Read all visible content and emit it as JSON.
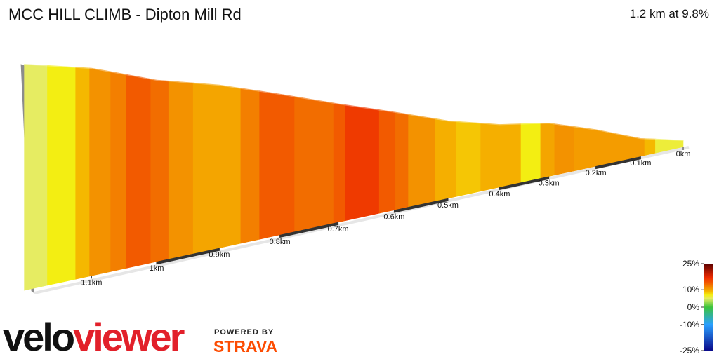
{
  "chart_data": {
    "type": "profile3d",
    "title": "MCC HILL CLIMB - Dipton Mill Rd",
    "subtitle": "1.2 km at 9.8%",
    "xlim": [
      0,
      1.2
    ],
    "xticks": [
      {
        "value": 0,
        "label": "0km"
      },
      {
        "value": 0.1,
        "label": "0.1km"
      },
      {
        "value": 0.2,
        "label": "0.2km"
      },
      {
        "value": 0.3,
        "label": "0.3km"
      },
      {
        "value": 0.4,
        "label": "0.4km"
      },
      {
        "value": 0.5,
        "label": "0.5km"
      },
      {
        "value": 0.6,
        "label": "0.6km"
      },
      {
        "value": 0.7,
        "label": "0.7km"
      },
      {
        "value": 0.8,
        "label": "0.8km"
      },
      {
        "value": 0.9,
        "label": "0.9km"
      },
      {
        "value": 1,
        "label": "1km"
      },
      {
        "value": 1.1,
        "label": "1.1km"
      }
    ],
    "profile": {
      "distance_km": [
        0,
        0.1,
        0.2,
        0.3,
        0.4,
        0.5,
        0.6,
        0.7,
        0.8,
        0.9,
        1,
        1.1,
        1.2
      ],
      "elevation_m": [
        0,
        6,
        16,
        25,
        30,
        38,
        49,
        60,
        72,
        84,
        94,
        108,
        118
      ]
    },
    "segments": [
      {
        "from": 1.2,
        "to": 1.166,
        "gradient": 5
      },
      {
        "from": 1.166,
        "to": 1.124,
        "gradient": 7
      },
      {
        "from": 1.124,
        "to": 1.103,
        "gradient": 9
      },
      {
        "from": 1.103,
        "to": 1.071,
        "gradient": 11
      },
      {
        "from": 1.071,
        "to": 1.047,
        "gradient": 12
      },
      {
        "from": 1.047,
        "to": 1.009,
        "gradient": 14
      },
      {
        "from": 1.009,
        "to": 0.981,
        "gradient": 13
      },
      {
        "from": 0.981,
        "to": 0.942,
        "gradient": 11
      },
      {
        "from": 0.942,
        "to": 0.865,
        "gradient": 10
      },
      {
        "from": 0.865,
        "to": 0.834,
        "gradient": 12
      },
      {
        "from": 0.834,
        "to": 0.775,
        "gradient": 14
      },
      {
        "from": 0.775,
        "to": 0.708,
        "gradient": 13
      },
      {
        "from": 0.708,
        "to": 0.687,
        "gradient": 14
      },
      {
        "from": 0.687,
        "to": 0.627,
        "gradient": 16
      },
      {
        "from": 0.627,
        "to": 0.598,
        "gradient": 14
      },
      {
        "from": 0.598,
        "to": 0.574,
        "gradient": 13
      },
      {
        "from": 0.574,
        "to": 0.524,
        "gradient": 11
      },
      {
        "from": 0.524,
        "to": 0.484,
        "gradient": 9.5
      },
      {
        "from": 0.484,
        "to": 0.437,
        "gradient": 8.5
      },
      {
        "from": 0.437,
        "to": 0.357,
        "gradient": 9.5
      },
      {
        "from": 0.357,
        "to": 0.317,
        "gradient": 7
      },
      {
        "from": 0.317,
        "to": 0.288,
        "gradient": 10
      },
      {
        "from": 0.288,
        "to": 0.246,
        "gradient": 11
      },
      {
        "from": 0.246,
        "to": 0.091,
        "gradient": 10.5
      },
      {
        "from": 0.091,
        "to": 0.066,
        "gradient": 9
      },
      {
        "from": 0.066,
        "to": 0,
        "gradient": 6
      }
    ],
    "colorscale": [
      {
        "value": 25,
        "color": "#5a0000"
      },
      {
        "value": 17,
        "color": "#ee2a00"
      },
      {
        "value": 14,
        "color": "#f25a00"
      },
      {
        "value": 11,
        "color": "#f39200"
      },
      {
        "value": 9,
        "color": "#f5b800"
      },
      {
        "value": 7,
        "color": "#f3ee12"
      },
      {
        "value": 5,
        "color": "#e6ec62"
      },
      {
        "value": 0,
        "color": "#3cc43c"
      },
      {
        "value": -10,
        "color": "#2aa0ff"
      },
      {
        "value": -25,
        "color": "#0a0a8a"
      }
    ],
    "colorbar": {
      "ylim": [
        -25,
        25
      ],
      "yticks": [
        {
          "value": 25,
          "label": "25%"
        },
        {
          "value": 10,
          "label": "10%"
        },
        {
          "value": 0,
          "label": "0%"
        },
        {
          "value": -10,
          "label": "-10%"
        },
        {
          "value": -25,
          "label": "-25%"
        }
      ]
    }
  },
  "branding": {
    "logo": [
      "velo",
      "viewer"
    ],
    "powered_by": "POWERED BY",
    "strava": "STRAVA"
  }
}
